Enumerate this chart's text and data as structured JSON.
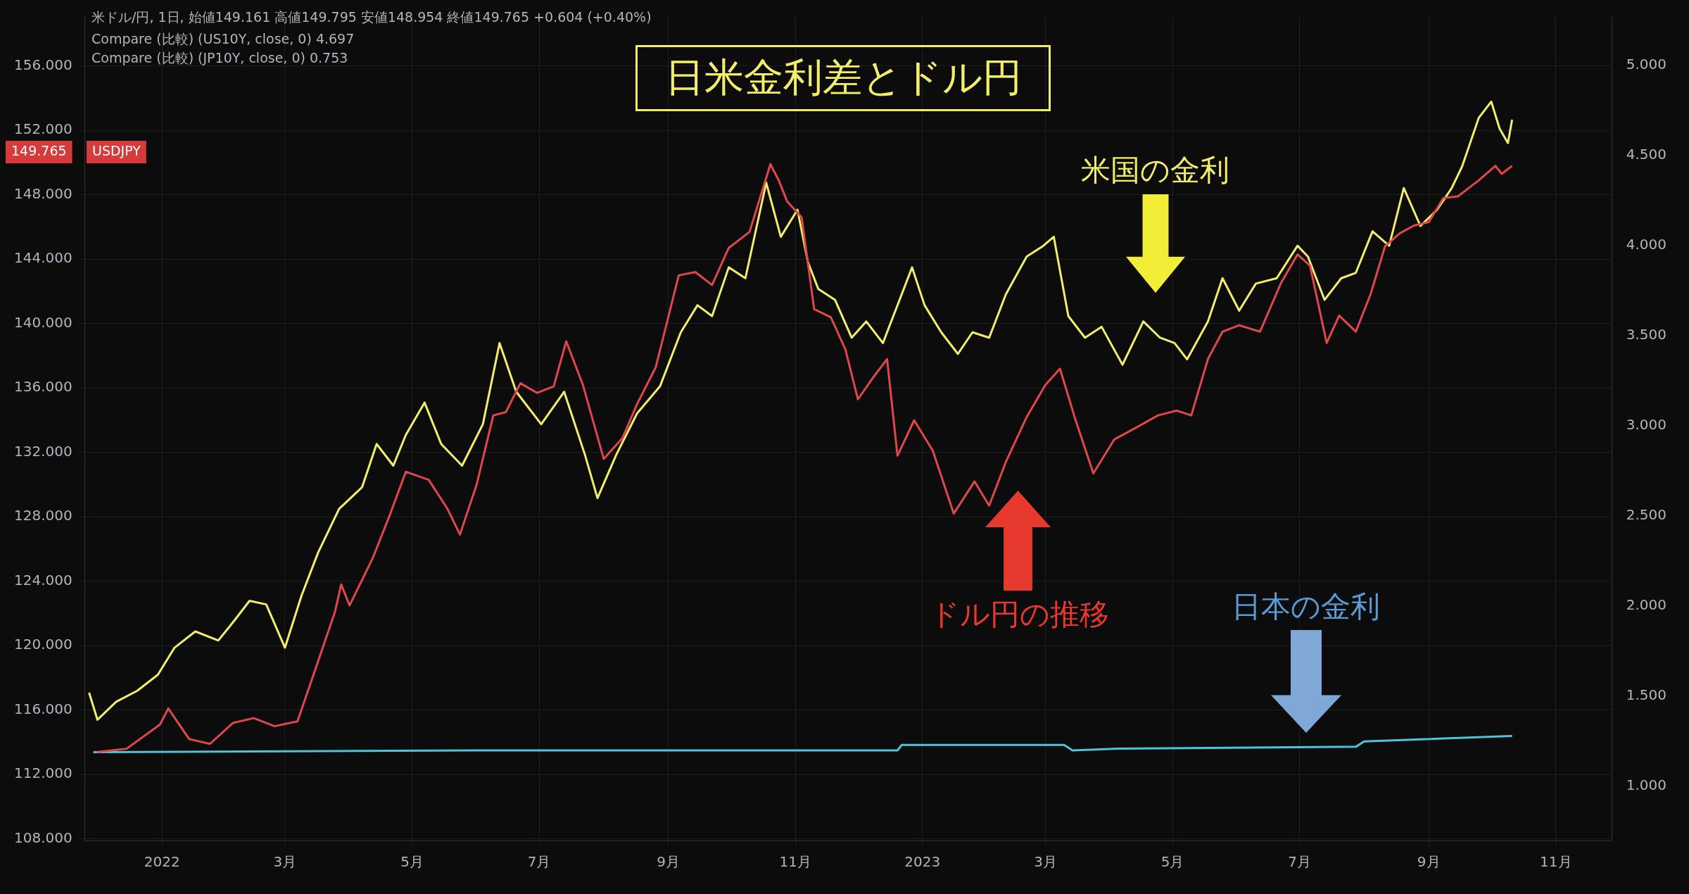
{
  "chart_data": {
    "type": "line",
    "title": "日米金利差とドル円",
    "xlim": [
      "2021-11-25",
      "2023-11-28"
    ],
    "xticks": [
      {
        "value": "2022-01-01",
        "label": "2022"
      },
      {
        "value": "2022-03-01",
        "label": "3月"
      },
      {
        "value": "2022-05-01",
        "label": "5月"
      },
      {
        "value": "2022-07-01",
        "label": "7月"
      },
      {
        "value": "2022-09-01",
        "label": "9月"
      },
      {
        "value": "2022-11-01",
        "label": "11月"
      },
      {
        "value": "2023-01-01",
        "label": "2023"
      },
      {
        "value": "2023-03-01",
        "label": "3月"
      },
      {
        "value": "2023-05-01",
        "label": "5月"
      },
      {
        "value": "2023-07-01",
        "label": "7月"
      },
      {
        "value": "2023-09-01",
        "label": "9月"
      },
      {
        "value": "2023-11-01",
        "label": "11月"
      }
    ],
    "ylim": [
      107.9,
      159.05
    ],
    "yticks": [
      {
        "value": 108,
        "label": "108.000"
      },
      {
        "value": 112,
        "label": "112.000"
      },
      {
        "value": 116,
        "label": "116.000"
      },
      {
        "value": 120,
        "label": "120.000"
      },
      {
        "value": 124,
        "label": "124.000"
      },
      {
        "value": 128,
        "label": "128.000"
      },
      {
        "value": 132,
        "label": "132.000"
      },
      {
        "value": 136,
        "label": "136.000"
      },
      {
        "value": 140,
        "label": "140.000"
      },
      {
        "value": 144,
        "label": "144.000"
      },
      {
        "value": 148,
        "label": "148.000"
      },
      {
        "value": 152,
        "label": "152.000"
      },
      {
        "value": 156,
        "label": "156.000"
      }
    ],
    "y2lim": [
      0.7,
      5.27
    ],
    "y2ticks": [
      {
        "value": 1,
        "label": "1.000"
      },
      {
        "value": 1.5,
        "label": "1.500"
      },
      {
        "value": 2,
        "label": "2.000"
      },
      {
        "value": 2.5,
        "label": "2.500"
      },
      {
        "value": 3,
        "label": "3.000"
      },
      {
        "value": 3.5,
        "label": "3.500"
      },
      {
        "value": 4,
        "label": "4.000"
      },
      {
        "value": 4.5,
        "label": "4.500"
      },
      {
        "value": 5,
        "label": "5.000"
      }
    ],
    "grid": true,
    "series": [
      {
        "color": "#e0474c",
        "x": [
          "2021-12-01",
          "2021-12-15",
          "2021-12-31",
          "2022-01-04",
          "2022-01-14",
          "2022-01-24",
          "2022-02-04",
          "2022-02-14",
          "2022-02-24",
          "2022-03-07",
          "2022-03-15",
          "2022-03-25",
          "2022-03-28",
          "2022-04-01",
          "2022-04-12",
          "2022-04-20",
          "2022-04-28",
          "2022-05-09",
          "2022-05-18",
          "2022-05-24",
          "2022-06-01",
          "2022-06-09",
          "2022-06-15",
          "2022-06-22",
          "2022-06-30",
          "2022-07-08",
          "2022-07-14",
          "2022-07-22",
          "2022-08-01",
          "2022-08-10",
          "2022-08-17",
          "2022-08-26",
          "2022-09-06",
          "2022-09-14",
          "2022-09-22",
          "2022-09-30",
          "2022-10-10",
          "2022-10-20",
          "2022-10-24",
          "2022-10-28",
          "2022-11-04",
          "2022-11-10",
          "2022-11-18",
          "2022-11-25",
          "2022-12-01",
          "2022-12-08",
          "2022-12-15",
          "2022-12-20",
          "2022-12-28",
          "2023-01-06",
          "2023-01-16",
          "2023-01-26",
          "2023-02-02",
          "2023-02-10",
          "2023-02-20",
          "2023-03-01",
          "2023-03-08",
          "2023-03-15",
          "2023-03-24",
          "2023-04-03",
          "2023-04-13",
          "2023-04-24",
          "2023-05-03",
          "2023-05-10",
          "2023-05-18",
          "2023-05-25",
          "2023-06-02",
          "2023-06-12",
          "2023-06-22",
          "2023-06-30",
          "2023-07-06",
          "2023-07-14",
          "2023-07-20",
          "2023-07-28",
          "2023-08-04",
          "2023-08-11",
          "2023-08-18",
          "2023-08-25",
          "2023-09-01",
          "2023-09-08",
          "2023-09-15",
          "2023-09-25",
          "2023-10-03",
          "2023-10-06",
          "2023-10-11"
        ],
        "values": [
          113.4,
          113.6,
          115.1,
          116.1,
          114.2,
          113.9,
          115.2,
          115.5,
          115.0,
          115.3,
          118.3,
          122.1,
          123.8,
          122.5,
          125.4,
          128.0,
          130.8,
          130.3,
          128.5,
          126.9,
          130.0,
          134.3,
          134.5,
          136.3,
          135.7,
          136.1,
          138.9,
          136.2,
          131.6,
          132.9,
          135.0,
          137.3,
          143.0,
          143.2,
          142.4,
          144.7,
          145.7,
          149.9,
          148.9,
          147.6,
          146.6,
          140.9,
          140.4,
          138.4,
          135.3,
          136.6,
          137.8,
          131.8,
          134.0,
          132.1,
          128.2,
          130.2,
          128.7,
          131.4,
          134.2,
          136.2,
          137.2,
          134.2,
          130.7,
          132.8,
          133.5,
          134.3,
          134.6,
          134.3,
          137.8,
          139.5,
          139.9,
          139.5,
          142.5,
          144.3,
          143.6,
          138.8,
          140.5,
          139.5,
          141.8,
          144.8,
          145.6,
          146.1,
          146.3,
          147.8,
          147.9,
          148.9,
          149.8,
          149.3,
          149.8
        ]
      },
      {
        "color": "#f2ee6a",
        "axis": "y2",
        "x": [
          "2021-11-27",
          "2021-12-01",
          "2021-12-10",
          "2021-12-20",
          "2021-12-30",
          "2022-01-07",
          "2022-01-17",
          "2022-01-28",
          "2022-02-04",
          "2022-02-12",
          "2022-02-20",
          "2022-03-01",
          "2022-03-09",
          "2022-03-17",
          "2022-03-27",
          "2022-04-07",
          "2022-04-14",
          "2022-04-22",
          "2022-04-28",
          "2022-05-07",
          "2022-05-15",
          "2022-05-25",
          "2022-06-04",
          "2022-06-12",
          "2022-06-20",
          "2022-07-02",
          "2022-07-13",
          "2022-07-23",
          "2022-07-29",
          "2022-08-07",
          "2022-08-17",
          "2022-08-28",
          "2022-09-07",
          "2022-09-15",
          "2022-09-22",
          "2022-09-30",
          "2022-10-08",
          "2022-10-18",
          "2022-10-25",
          "2022-11-02",
          "2022-11-07",
          "2022-11-12",
          "2022-11-20",
          "2022-11-28",
          "2022-12-05",
          "2022-12-13",
          "2022-12-21",
          "2022-12-27",
          "2023-01-02",
          "2023-01-10",
          "2023-01-18",
          "2023-01-25",
          "2023-02-02",
          "2023-02-10",
          "2023-02-20",
          "2023-02-28",
          "2023-03-05",
          "2023-03-12",
          "2023-03-20",
          "2023-03-28",
          "2023-04-07",
          "2023-04-17",
          "2023-04-25",
          "2023-05-02",
          "2023-05-08",
          "2023-05-18",
          "2023-05-25",
          "2023-06-02",
          "2023-06-10",
          "2023-06-20",
          "2023-06-30",
          "2023-07-05",
          "2023-07-13",
          "2023-07-21",
          "2023-07-28",
          "2023-08-05",
          "2023-08-13",
          "2023-08-20",
          "2023-08-28",
          "2023-09-05",
          "2023-09-12",
          "2023-09-17",
          "2023-09-25",
          "2023-10-01",
          "2023-10-05",
          "2023-10-09",
          "2023-10-11"
        ],
        "values": [
          1.52,
          1.37,
          1.47,
          1.53,
          1.62,
          1.77,
          1.86,
          1.81,
          1.91,
          2.03,
          2.01,
          1.77,
          2.06,
          2.3,
          2.54,
          2.66,
          2.9,
          2.78,
          2.95,
          3.13,
          2.9,
          2.78,
          3.01,
          3.46,
          3.19,
          3.01,
          3.19,
          2.84,
          2.6,
          2.84,
          3.07,
          3.22,
          3.52,
          3.67,
          3.61,
          3.88,
          3.82,
          4.35,
          4.05,
          4.2,
          3.91,
          3.76,
          3.7,
          3.49,
          3.58,
          3.46,
          3.7,
          3.88,
          3.67,
          3.52,
          3.4,
          3.52,
          3.49,
          3.73,
          3.94,
          4.0,
          4.05,
          3.61,
          3.49,
          3.55,
          3.34,
          3.58,
          3.49,
          3.46,
          3.37,
          3.58,
          3.82,
          3.64,
          3.79,
          3.82,
          4.0,
          3.94,
          3.7,
          3.82,
          3.85,
          4.08,
          4.0,
          4.32,
          4.11,
          4.2,
          4.32,
          4.44,
          4.71,
          4.8,
          4.65,
          4.57,
          4.7
        ]
      },
      {
        "color": "#4fc3d9",
        "axis": "y2",
        "x": [
          "2021-11-29",
          "2022-06-01",
          "2022-12-20",
          "2022-12-22",
          "2023-03-10",
          "2023-03-14",
          "2023-04-05",
          "2023-07-28",
          "2023-08-01",
          "2023-10-11"
        ],
        "values": [
          1.19,
          1.2,
          1.2,
          1.23,
          1.23,
          1.2,
          1.21,
          1.22,
          1.25,
          1.28
        ]
      }
    ],
    "annotations": [
      "米ドル/円, 1日, 始値149.161 高値149.795 安値148.954 終値149.765 +0.604 (+0.40%)",
      "Compare (比較) (US10Y, close, 0) 4.697",
      "Compare (比較) (JP10Y, close, 0) 0.753",
      "149.765",
      "USDJPY",
      "米国の金利",
      "ドル円の推移",
      "日本の金利"
    ]
  }
}
